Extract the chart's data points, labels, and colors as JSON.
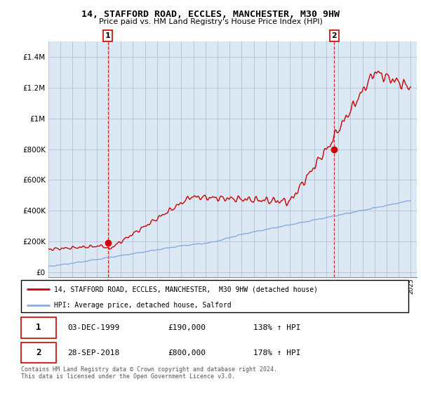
{
  "title1": "14, STAFFORD ROAD, ECCLES, MANCHESTER, M30 9HW",
  "title2": "Price paid vs. HM Land Registry's House Price Index (HPI)",
  "legend_line1": "14, STAFFORD ROAD, ECCLES, MANCHESTER,  M30 9HW (detached house)",
  "legend_line2": "HPI: Average price, detached house, Salford",
  "transaction1_date": "03-DEC-1999",
  "transaction1_price": "£190,000",
  "transaction1_hpi": "138% ↑ HPI",
  "transaction2_date": "28-SEP-2018",
  "transaction2_price": "£800,000",
  "transaction2_hpi": "178% ↑ HPI",
  "footer": "Contains HM Land Registry data © Crown copyright and database right 2024.\nThis data is licensed under the Open Government Licence v3.0.",
  "price_line_color": "#cc0000",
  "hpi_line_color": "#88aadd",
  "marker_color": "#cc0000",
  "annotation_box_color": "#cc0000",
  "chart_bg_color": "#dce9f5",
  "ylim_max": 1500000,
  "ylim_min": -30000,
  "background_color": "#ffffff",
  "grid_color": "#aabbcc"
}
